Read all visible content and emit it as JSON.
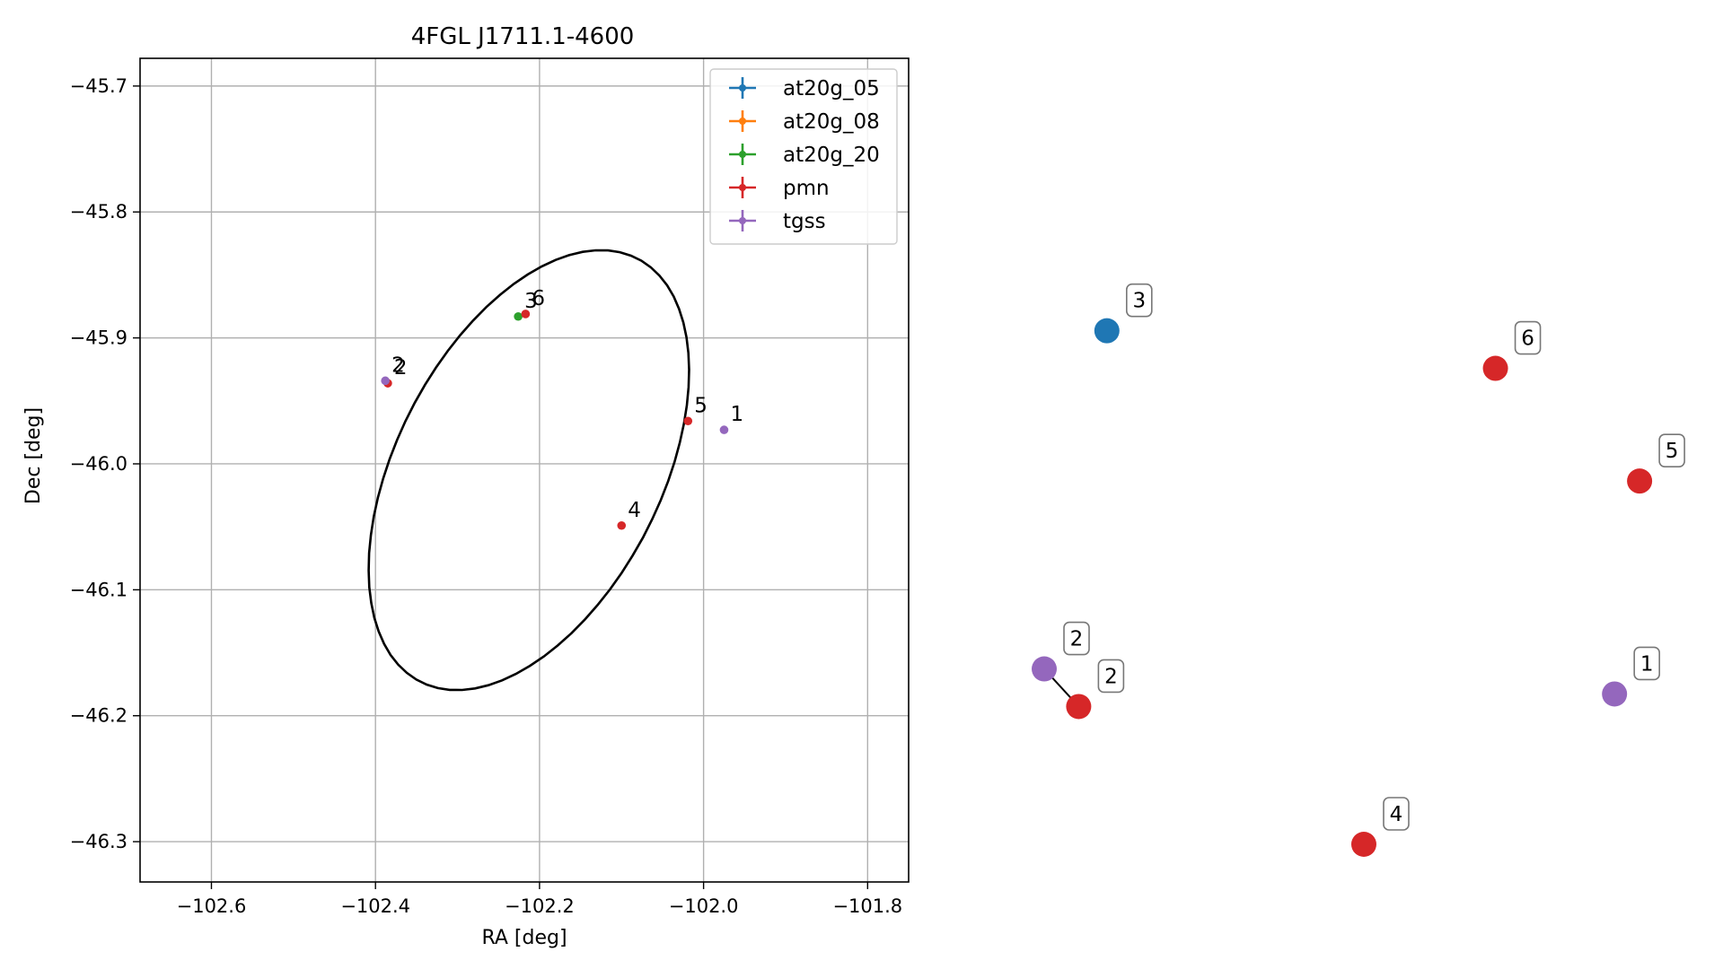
{
  "chart_data": [
    {
      "type": "scatter",
      "title": "4FGL J1711.1-4600",
      "xlabel": "RA [deg]",
      "ylabel": "Dec [deg]",
      "xlim": [
        -102.687,
        -101.75
      ],
      "ylim": [
        -46.332,
        -45.678
      ],
      "xticks": [
        -102.6,
        -102.4,
        -102.2,
        -102.0,
        -101.8
      ],
      "xtick_labels": [
        "−102.6",
        "−102.4",
        "−102.2",
        "−102.0",
        "−101.8"
      ],
      "yticks": [
        -45.7,
        -45.8,
        -45.9,
        -46.0,
        -46.1,
        -46.2,
        -46.3
      ],
      "ytick_labels": [
        "−45.7",
        "−45.8",
        "−45.9",
        "−46.0",
        "−46.1",
        "−46.2",
        "−46.3"
      ],
      "grid": true,
      "legend_position": "top-right",
      "series": [
        {
          "name": "at20g_05",
          "color": "#1f77b4",
          "points": []
        },
        {
          "name": "at20g_08",
          "color": "#ff7f0e",
          "points": []
        },
        {
          "name": "at20g_20",
          "color": "#2ca02c",
          "points": [
            {
              "label": "3",
              "ra": -102.226,
              "dec": -45.883
            }
          ]
        },
        {
          "name": "pmn",
          "color": "#d62728",
          "points": [
            {
              "label": "6",
              "ra": -102.217,
              "dec": -45.881
            },
            {
              "label": "2",
              "ra": -102.385,
              "dec": -45.936
            },
            {
              "label": "5",
              "ra": -102.019,
              "dec": -45.966
            },
            {
              "label": "4",
              "ra": -102.1,
              "dec": -46.049
            }
          ]
        },
        {
          "name": "tgss",
          "color": "#9467bd",
          "points": [
            {
              "label": "1",
              "ra": -101.975,
              "dec": -45.973
            },
            {
              "label": "2",
              "ra": -102.388,
              "dec": -45.934
            }
          ]
        }
      ],
      "ellipse": {
        "color": "#000000",
        "center_ra": -102.213,
        "center_dec": -46.005,
        "semi_major_deg": 0.224,
        "semi_minor_deg": 0.136,
        "angle_deg": 38
      }
    },
    {
      "type": "scatter",
      "title": "",
      "nodes": [
        {
          "label": "3",
          "color": "#1f77b4",
          "x": 0.1,
          "y": 0.82
        },
        {
          "label": "6",
          "color": "#d62728",
          "x": 0.72,
          "y": 0.76
        },
        {
          "label": "5",
          "color": "#d62728",
          "x": 0.95,
          "y": 0.58
        },
        {
          "label": "2",
          "color": "#9467bd",
          "x": 0.0,
          "y": 0.28
        },
        {
          "label": "2",
          "color": "#d62728",
          "x": 0.055,
          "y": 0.22,
          "links_to_previous": true
        },
        {
          "label": "1",
          "color": "#9467bd",
          "x": 0.91,
          "y": 0.24
        },
        {
          "label": "4",
          "color": "#d62728",
          "x": 0.51,
          "y": 0.0
        }
      ]
    }
  ]
}
